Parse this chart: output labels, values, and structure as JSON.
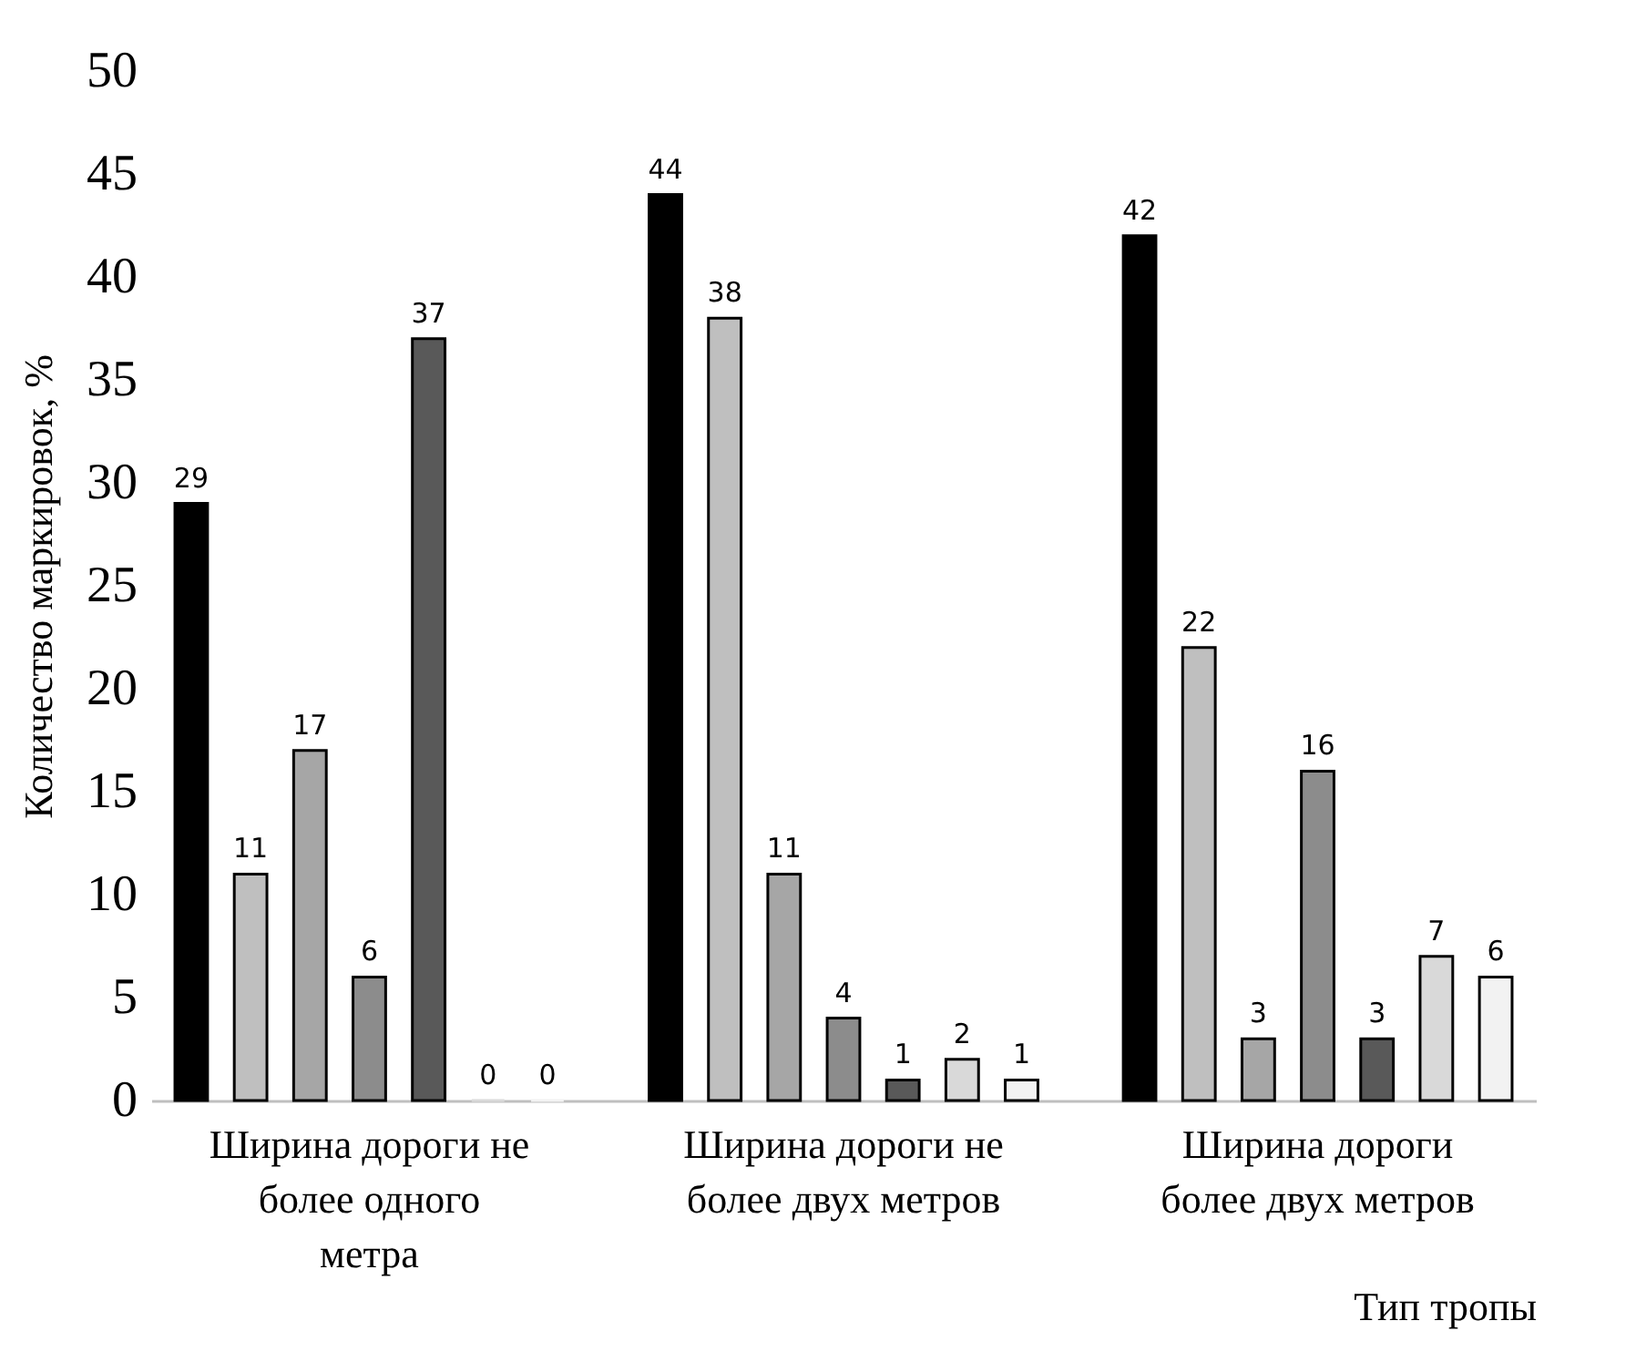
{
  "chart_data": {
    "type": "bar",
    "ylabel": "Количество маркировок, %",
    "xlabel": "Тип тропы",
    "categories": [
      "Ширина дороги не более одного метра",
      "Ширина дороги не более двух метров",
      "Ширина дороги более двух метров"
    ],
    "series": [
      {
        "color": "#000000",
        "values": [
          29,
          44,
          42
        ]
      },
      {
        "color": "#bfbfbf",
        "values": [
          11,
          38,
          22
        ]
      },
      {
        "color": "#a6a6a6",
        "values": [
          17,
          11,
          3
        ]
      },
      {
        "color": "#8c8c8c",
        "values": [
          6,
          4,
          16
        ]
      },
      {
        "color": "#595959",
        "values": [
          37,
          1,
          3
        ]
      },
      {
        "color": "#d9d9d9",
        "values": [
          0,
          2,
          7
        ]
      },
      {
        "color": "#f2f2f2",
        "values": [
          0,
          1,
          6
        ]
      }
    ],
    "ylim": [
      0,
      50
    ],
    "yticks": [
      0,
      5,
      10,
      15,
      20,
      25,
      30,
      35,
      40,
      45,
      50
    ],
    "data_labels": true,
    "grid": false,
    "legend": false
  }
}
